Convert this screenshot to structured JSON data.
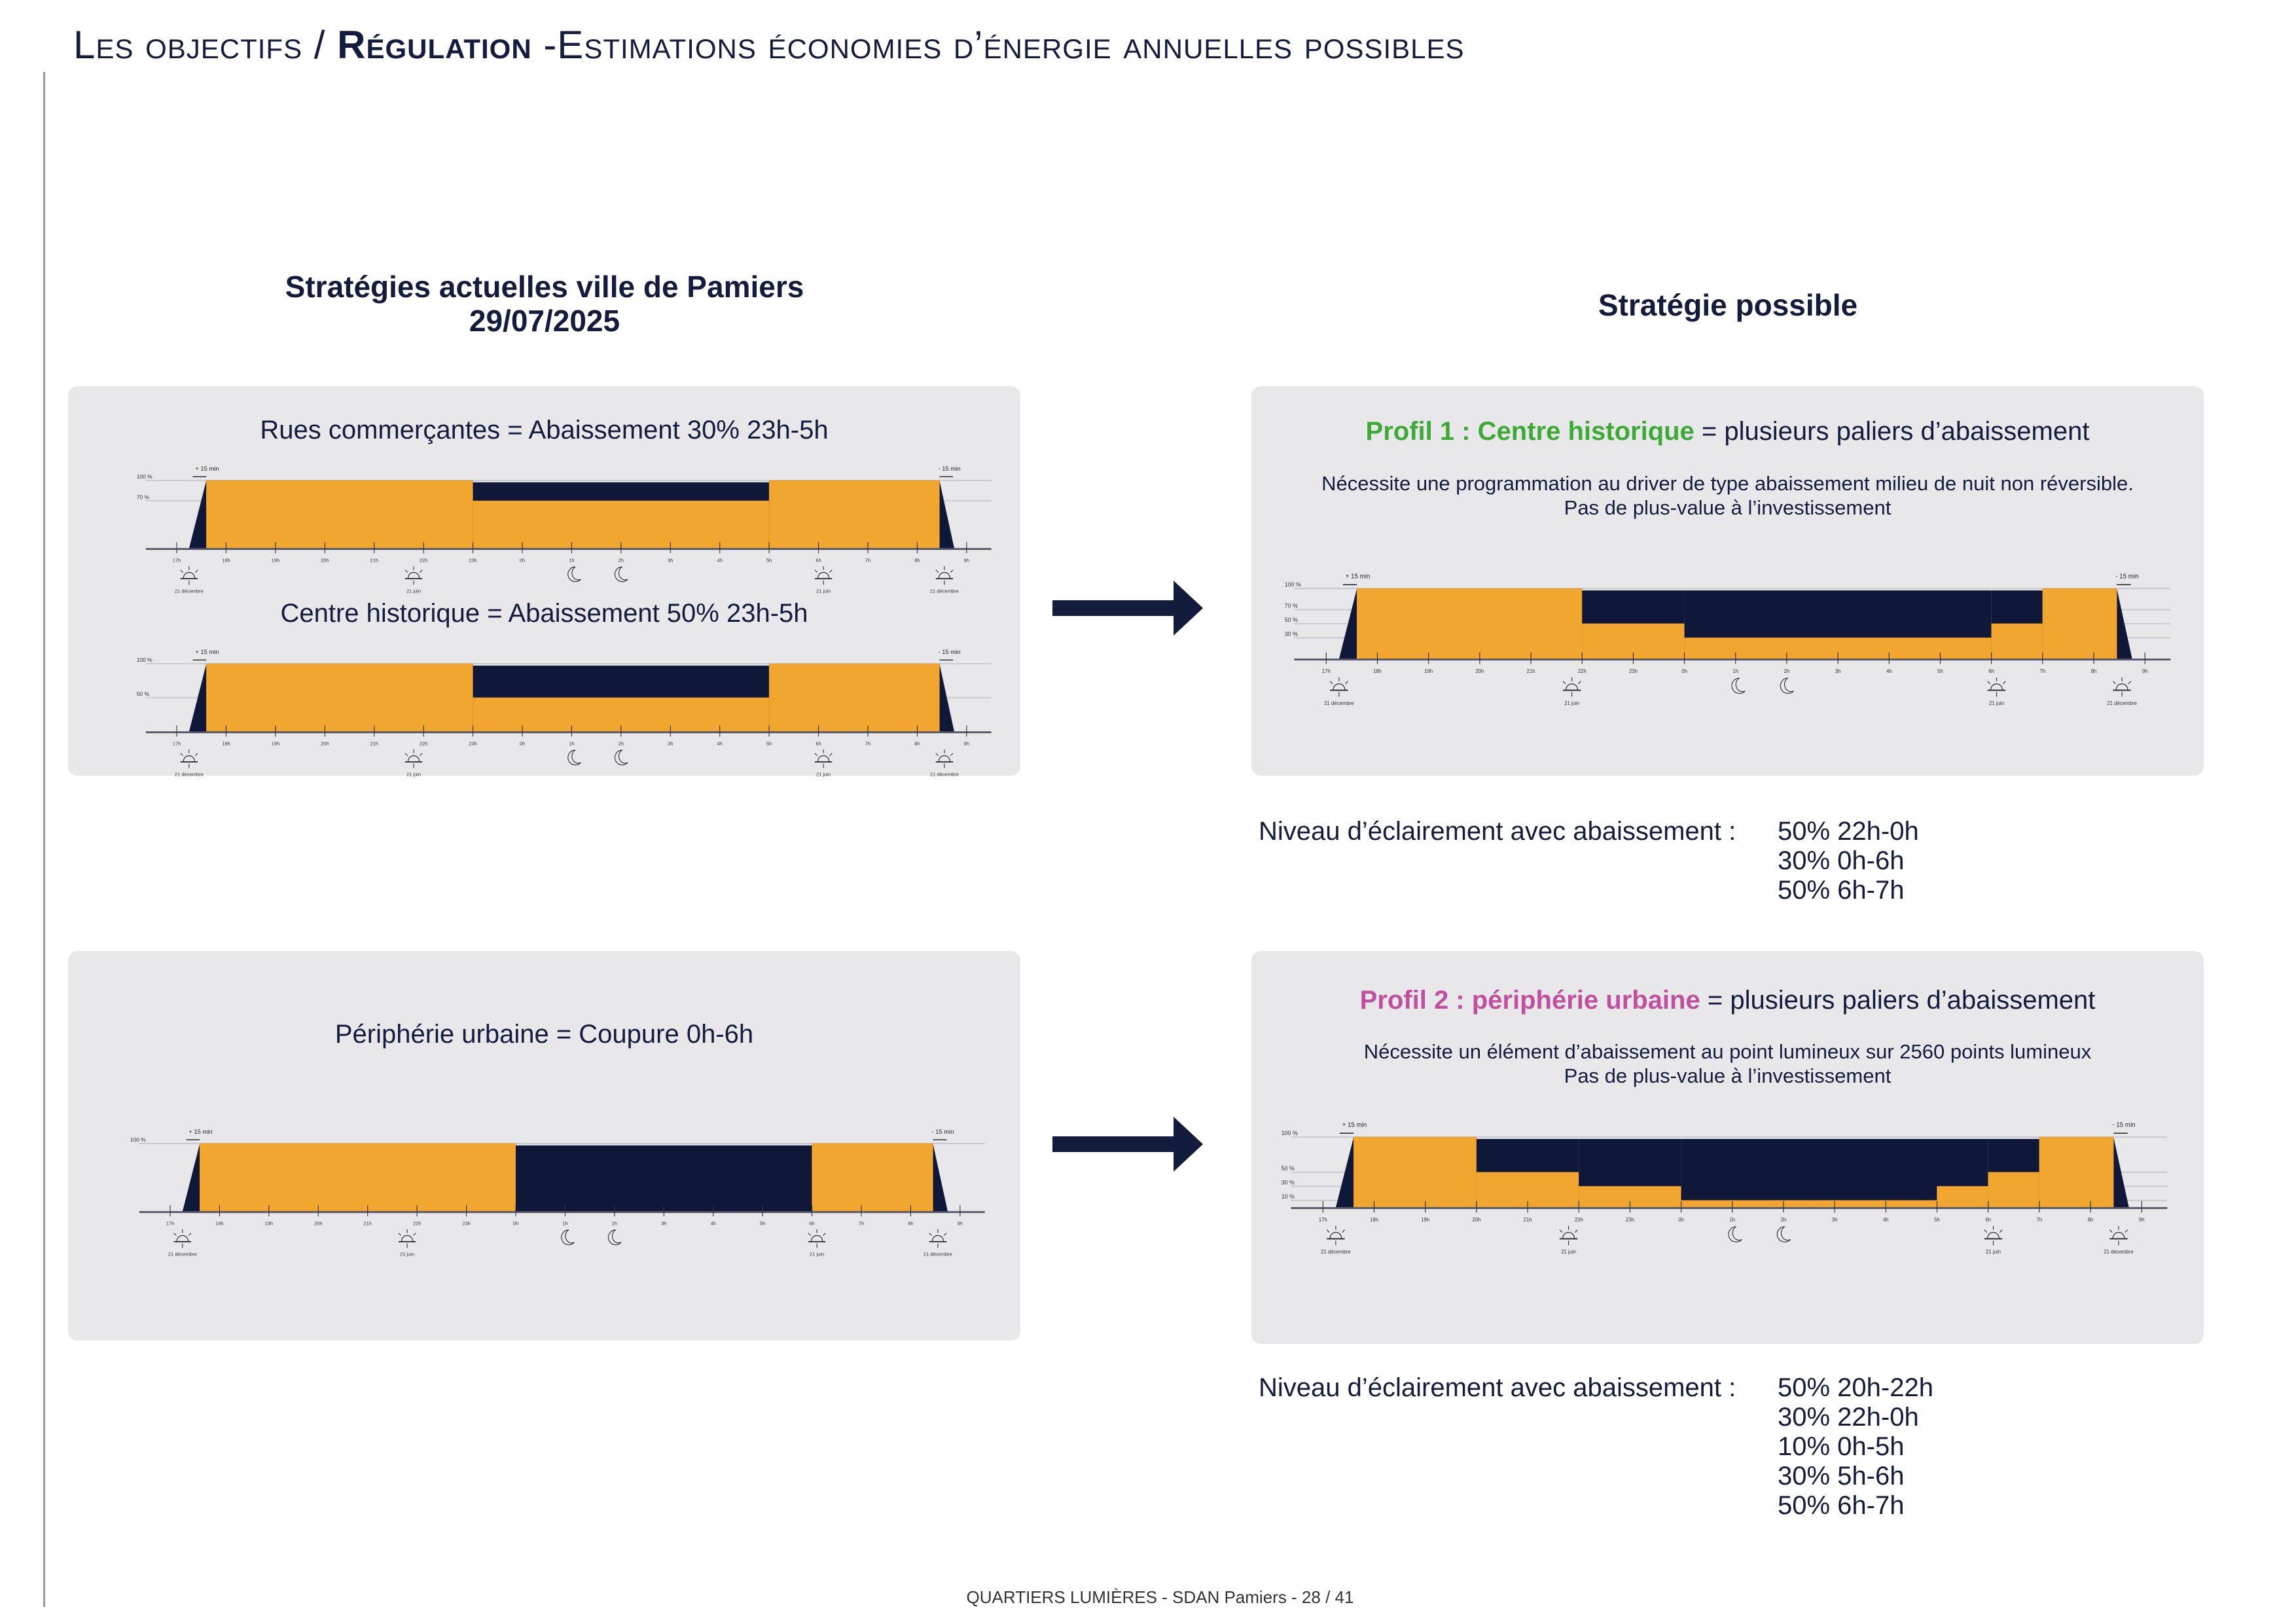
{
  "header": {
    "prefix": "Les objectifs / ",
    "bold": "Régulation",
    "rest": " -Estimations économies d’énergie annuelles possibles"
  },
  "left": {
    "heading_line1": "Stratégies actuelles ville de Pamiers",
    "heading_line2": "29/07/2025",
    "panel1": {
      "chart1_title": "Rues commerçantes = Abaissement 30% 23h-5h",
      "chart2_title": "Centre historique = Abaissement 50% 23h-5h"
    },
    "panel2": {
      "chart_title": "Périphérie urbaine = Coupure 0h-6h"
    }
  },
  "right": {
    "heading": "Stratégie possible",
    "profile1": {
      "name": "Profil 1 : Centre historique",
      "title_rest": " = plusieurs paliers d’abaissement",
      "note1": "Nécessite une programmation au driver de type abaissement milieu de nuit non réversible.",
      "note2": "Pas de plus-value à l’investissement",
      "levels_label": "Niveau d’éclairement avec abaissement :",
      "levels": [
        "50% 22h-0h",
        "30% 0h-6h",
        "50% 6h-7h"
      ],
      "color": "#3daa35"
    },
    "profile2": {
      "name": "Profil 2 : périphérie urbaine",
      "title_rest": " =  plusieurs paliers d’abaissement",
      "note1": "Nécessite un élément d’abaissement au point lumineux sur 2560 points lumineux",
      "note2": "Pas de plus-value à l’investissement",
      "levels_label": "Niveau d’éclairement avec abaissement :",
      "levels": [
        "50% 20h-22h",
        "30% 22h-0h",
        "10% 0h-5h",
        "30% 5h-6h",
        "50% 6h-7h"
      ],
      "color": "#c04f9f"
    }
  },
  "footer": "QUARTIERS LUMIÈRES - SDAN Pamiers - 28 / 41",
  "colors": {
    "lit": "#f0a62f",
    "saved": "#0f1838",
    "panel": "#e8e8eb",
    "text": "#141c3e"
  },
  "chart_data": [
    {
      "id": "rues",
      "type": "area",
      "ticks": [
        "17h",
        "18h",
        "19h",
        "20h",
        "21h",
        "22h",
        "23h",
        "0h",
        "1h",
        "2h",
        "3h",
        "4h",
        "5h",
        "6h",
        "7h",
        "8h",
        "9h"
      ],
      "ylabels": [
        100,
        70
      ],
      "start_note": "+ 15 min",
      "end_note": "- 15 min",
      "segments": [
        [
          17.6,
          23,
          100
        ],
        [
          23,
          29,
          70
        ],
        [
          29,
          32.45,
          100
        ]
      ],
      "sun_labels": [
        "21 décembre",
        "21 juin",
        "21 juin",
        "21 décembre"
      ]
    },
    {
      "id": "centre",
      "type": "area",
      "ticks": [
        "17h",
        "18h",
        "19h",
        "20h",
        "21h",
        "22h",
        "23h",
        "0h",
        "1h",
        "2h",
        "3h",
        "4h",
        "5h",
        "6h",
        "7h",
        "8h",
        "9h"
      ],
      "ylabels": [
        100,
        50
      ],
      "start_note": "+ 15 min",
      "end_note": "- 15 min",
      "segments": [
        [
          17.6,
          23,
          100
        ],
        [
          23,
          29,
          50
        ],
        [
          29,
          32.45,
          100
        ]
      ],
      "sun_labels": [
        "21 décembre",
        "21 juin",
        "21 juin",
        "21 décembre"
      ]
    },
    {
      "id": "peripherie",
      "type": "area",
      "ticks": [
        "17h",
        "18h",
        "19h",
        "20h",
        "21h",
        "22h",
        "23h",
        "0h",
        "1h",
        "2h",
        "3h",
        "4h",
        "5h",
        "6h",
        "7h",
        "8h",
        "9h"
      ],
      "ylabels": [
        100
      ],
      "start_note": "+ 15 min",
      "end_note": "- 15 min",
      "segments": [
        [
          17.6,
          24,
          100
        ],
        [
          24,
          30,
          0
        ],
        [
          30,
          32.45,
          100
        ]
      ],
      "sun_labels": [
        "21 décembre",
        "21 juin",
        "21 juin",
        "21 décembre"
      ]
    },
    {
      "id": "profil1",
      "type": "area",
      "ticks": [
        "17h",
        "18h",
        "19h",
        "20h",
        "21h",
        "22h",
        "23h",
        "0h",
        "1h",
        "2h",
        "3h",
        "4h",
        "5h",
        "6h",
        "7h",
        "8h",
        "9h"
      ],
      "ylabels": [
        100,
        70,
        50,
        30
      ],
      "start_note": "+ 15 min",
      "end_note": "- 15 min",
      "segments": [
        [
          17.6,
          22,
          100
        ],
        [
          22,
          24,
          50
        ],
        [
          24,
          30,
          30
        ],
        [
          30,
          31,
          50
        ],
        [
          31,
          32.45,
          100
        ]
      ],
      "sun_labels": [
        "21 décembre",
        "21 juin",
        "21 juin",
        "21 décembre"
      ]
    },
    {
      "id": "profil2",
      "type": "area",
      "ticks": [
        "17h",
        "18h",
        "19h",
        "20h",
        "21h",
        "22h",
        "23h",
        "0h",
        "1h",
        "2h",
        "3h",
        "4h",
        "5h",
        "6h",
        "7h",
        "8h",
        "9h"
      ],
      "ylabels": [
        100,
        50,
        30,
        10
      ],
      "start_note": "+ 15 min",
      "end_note": "- 15 min",
      "segments": [
        [
          17.6,
          20,
          100
        ],
        [
          20,
          22,
          50
        ],
        [
          22,
          24,
          30
        ],
        [
          24,
          29,
          10
        ],
        [
          29,
          30,
          30
        ],
        [
          30,
          31,
          50
        ],
        [
          31,
          32.45,
          100
        ]
      ],
      "sun_labels": [
        "21 décembre",
        "21 juin",
        "21 juin",
        "21 décembre"
      ]
    }
  ]
}
